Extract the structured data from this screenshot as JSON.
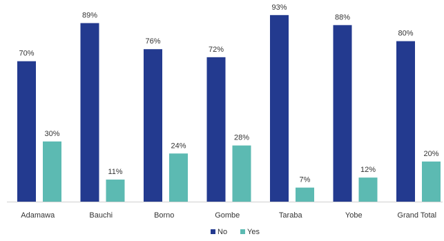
{
  "chart_data": {
    "type": "bar",
    "categories": [
      "Adamawa",
      "Bauchi",
      "Borno",
      "Gombe",
      "Taraba",
      "Yobe",
      "Grand Total"
    ],
    "series": [
      {
        "name": "No",
        "color": "#233a8f",
        "values": [
          70,
          89,
          76,
          72,
          93,
          88,
          80
        ]
      },
      {
        "name": "Yes",
        "color": "#5cbab2",
        "values": [
          30,
          11,
          24,
          28,
          7,
          12,
          20
        ]
      }
    ],
    "value_suffix": "%",
    "ylim": [
      0,
      100
    ],
    "grid": false,
    "legend_position": "bottom-center",
    "title": "",
    "xlabel": "",
    "ylabel": ""
  }
}
